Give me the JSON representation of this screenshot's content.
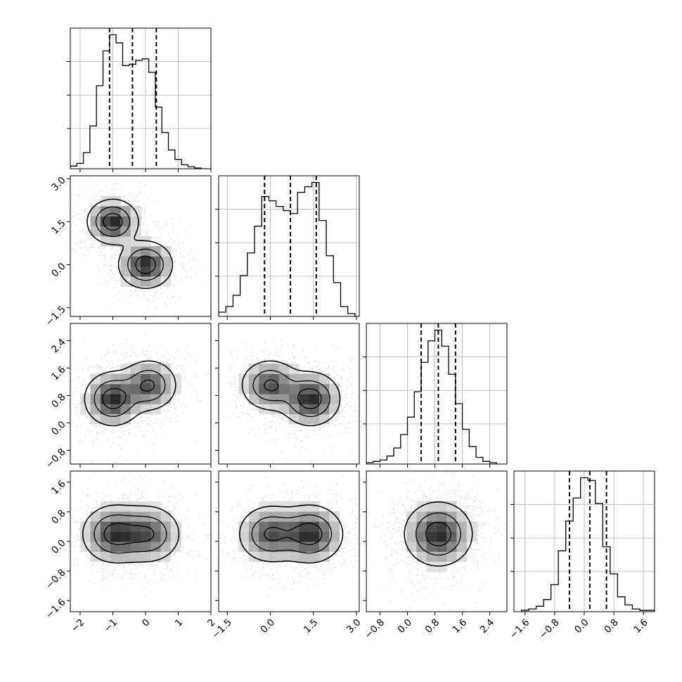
{
  "chart_data": {
    "type": "corner",
    "variables": [
      {
        "name": "",
        "range": [
          -2.3,
          2.0
        ],
        "ticks": [
          -2,
          -1,
          0,
          1,
          2
        ],
        "tick_labels": [
          "−2",
          "−1",
          "0",
          "1",
          "2"
        ],
        "quantiles": [
          -1.1,
          -0.4,
          0.33
        ],
        "hist": {
          "bin_edges": [
            -2.3,
            -2.1,
            -1.9,
            -1.7,
            -1.5,
            -1.3,
            -1.1,
            -0.9,
            -0.7,
            -0.5,
            -0.3,
            -0.1,
            0.1,
            0.3,
            0.5,
            0.7,
            0.9,
            1.1,
            1.3,
            1.5,
            1.7,
            1.9
          ],
          "counts": [
            0.02,
            0.04,
            0.12,
            0.32,
            0.62,
            0.88,
            1.0,
            0.94,
            0.77,
            0.78,
            0.81,
            0.82,
            0.72,
            0.46,
            0.27,
            0.14,
            0.07,
            0.03,
            0.015,
            0.005,
            0.0
          ]
        }
      },
      {
        "name": "",
        "range": [
          -1.8,
          3.1
        ],
        "ticks": [
          -1.5,
          0.0,
          1.5,
          3.0
        ],
        "tick_labels": [
          "−1.5",
          "0.0",
          "1.5",
          "3.0"
        ],
        "quantiles": [
          -0.2,
          0.7,
          1.6
        ],
        "hist": {
          "bin_edges": [
            -1.8,
            -1.55,
            -1.3,
            -1.05,
            -0.8,
            -0.55,
            -0.3,
            -0.05,
            0.2,
            0.45,
            0.7,
            0.95,
            1.2,
            1.45,
            1.7,
            1.95,
            2.2,
            2.45,
            2.7,
            2.95
          ],
          "counts": [
            0.03,
            0.07,
            0.15,
            0.29,
            0.45,
            0.64,
            0.85,
            0.82,
            0.78,
            0.75,
            0.73,
            0.88,
            0.92,
            0.95,
            0.68,
            0.43,
            0.24,
            0.07,
            0.02
          ]
        }
      },
      {
        "name": "",
        "range": [
          -1.2,
          2.9
        ],
        "ticks": [
          -0.8,
          0.0,
          0.8,
          1.6,
          2.4
        ],
        "tick_labels": [
          "−0.8",
          "0.0",
          "0.8",
          "1.6",
          "2.4"
        ],
        "quantiles": [
          0.4,
          0.9,
          1.4
        ],
        "hist": {
          "bin_edges": [
            -1.2,
            -1.0,
            -0.8,
            -0.6,
            -0.4,
            -0.2,
            0.0,
            0.2,
            0.4,
            0.6,
            0.8,
            1.0,
            1.2,
            1.4,
            1.6,
            1.8,
            2.0,
            2.2,
            2.4,
            2.6
          ],
          "counts": [
            0.01,
            0.02,
            0.03,
            0.06,
            0.12,
            0.22,
            0.35,
            0.54,
            0.76,
            0.92,
            1.0,
            0.88,
            0.67,
            0.45,
            0.26,
            0.13,
            0.05,
            0.02,
            0.01
          ]
        }
      },
      {
        "name": "",
        "range": [
          -1.9,
          1.9
        ],
        "ticks": [
          -1.6,
          -0.8,
          0.0,
          0.8,
          1.6
        ],
        "tick_labels": [
          "−1.6",
          "−0.8",
          "0.0",
          "0.8",
          "1.6"
        ],
        "quantiles": [
          -0.4,
          0.15,
          0.6
        ],
        "hist": {
          "bin_edges": [
            -1.7,
            -1.5,
            -1.3,
            -1.1,
            -0.9,
            -0.7,
            -0.5,
            -0.3,
            -0.1,
            0.1,
            0.3,
            0.5,
            0.7,
            0.9,
            1.1,
            1.3,
            1.5,
            1.7,
            1.9
          ],
          "counts": [
            0.01,
            0.02,
            0.04,
            0.09,
            0.2,
            0.45,
            0.67,
            0.84,
            0.99,
            0.97,
            0.8,
            0.48,
            0.28,
            0.11,
            0.05,
            0.02,
            0.01,
            0.01
          ]
        }
      }
    ],
    "pairs": [
      {
        "row": 1,
        "col": 0,
        "modes": [
          {
            "x": -1.0,
            "y": 1.5,
            "sx": 0.38,
            "sy": 0.38,
            "w": 0.5
          },
          {
            "x": 0.0,
            "y": 0.0,
            "sx": 0.4,
            "sy": 0.4,
            "w": 0.5
          }
        ]
      },
      {
        "row": 2,
        "col": 0,
        "modes": [
          {
            "x": -1.0,
            "y": 0.7,
            "sx": 0.42,
            "sy": 0.38,
            "w": 0.55
          },
          {
            "x": 0.1,
            "y": 1.1,
            "sx": 0.42,
            "sy": 0.36,
            "w": 0.45
          }
        ]
      },
      {
        "row": 2,
        "col": 1,
        "modes": [
          {
            "x": 0.0,
            "y": 1.1,
            "sx": 0.5,
            "sy": 0.36,
            "w": 0.45
          },
          {
            "x": 1.4,
            "y": 0.7,
            "sx": 0.5,
            "sy": 0.38,
            "w": 0.55
          }
        ]
      },
      {
        "row": 3,
        "col": 0,
        "modes": [
          {
            "x": -0.95,
            "y": 0.2,
            "sx": 0.48,
            "sy": 0.38,
            "w": 0.55
          },
          {
            "x": 0.1,
            "y": 0.2,
            "sx": 0.48,
            "sy": 0.38,
            "w": 0.45
          }
        ]
      },
      {
        "row": 3,
        "col": 1,
        "modes": [
          {
            "x": 0.0,
            "y": 0.2,
            "sx": 0.55,
            "sy": 0.38,
            "w": 0.45
          },
          {
            "x": 1.4,
            "y": 0.2,
            "sx": 0.55,
            "sy": 0.38,
            "w": 0.55
          }
        ]
      },
      {
        "row": 3,
        "col": 2,
        "modes": [
          {
            "x": 0.9,
            "y": 0.2,
            "sx": 0.48,
            "sy": 0.42,
            "w": 1.0
          }
        ]
      }
    ],
    "contour_levels": [
      0.12,
      0.4,
      0.75
    ],
    "grid": true
  }
}
